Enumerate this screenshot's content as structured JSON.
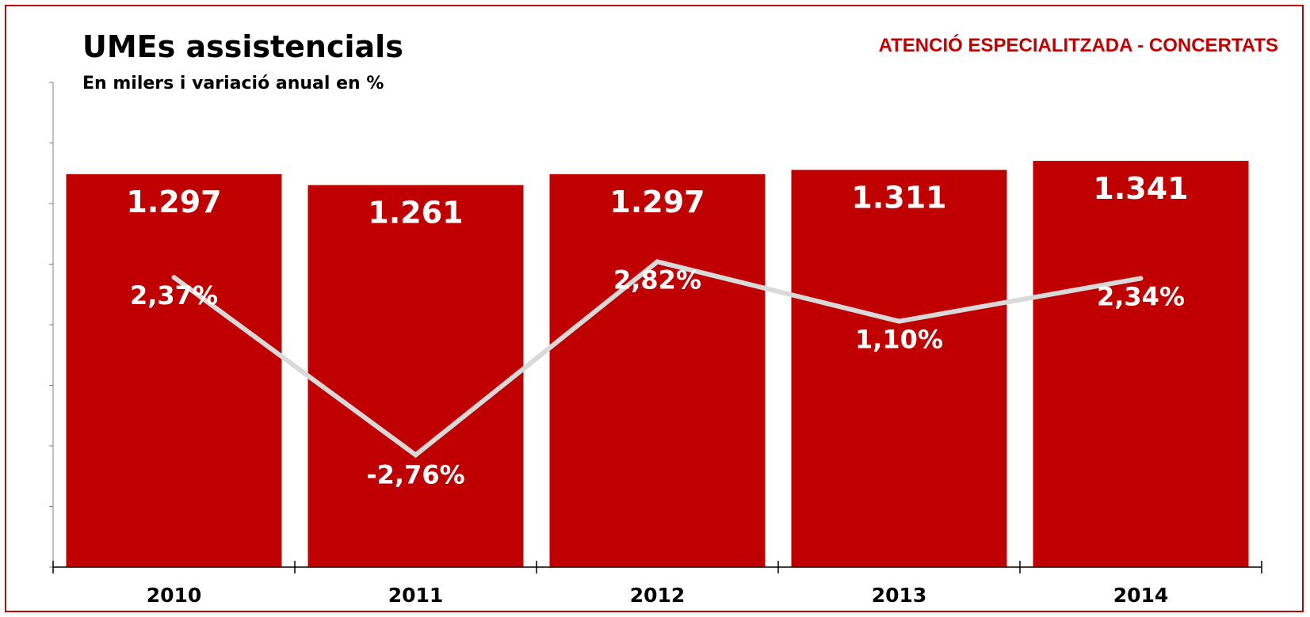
{
  "header": {
    "title": "UMEs assistencials",
    "subtitle": "En milers i variació anual en %",
    "section_label": "ATENCIÓ ESPECIALITZADA - CONCERTATS"
  },
  "colors": {
    "bar": "#c00000",
    "line": "#d9d9d9",
    "frame": "#c00000",
    "section_label": "#c00000",
    "axis": "#000000"
  },
  "chart_data": {
    "type": "bar",
    "title": "UMEs assistencials",
    "subtitle": "En milers i variació anual en %",
    "categories": [
      "2010",
      "2011",
      "2012",
      "2013",
      "2014"
    ],
    "series": [
      {
        "type": "bar",
        "values": [
          1297,
          1261,
          1297,
          1311,
          1341
        ],
        "labels": [
          "1.297",
          "1.261",
          "1.297",
          "1.311",
          "1.341"
        ]
      },
      {
        "type": "line",
        "values": [
          2.37,
          -2.76,
          2.82,
          1.1,
          2.34
        ],
        "labels": [
          "2,37%",
          "-2,76%",
          "2,82%",
          "1,10%",
          "2,34%"
        ]
      }
    ],
    "ylim": [
      0,
      1600
    ],
    "y2lim": [
      -6,
      8
    ],
    "grid": false,
    "legend": "none"
  }
}
